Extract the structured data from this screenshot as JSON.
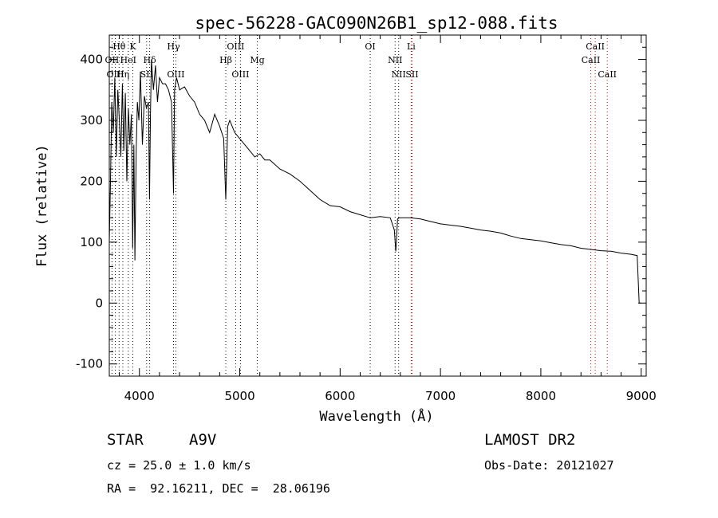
{
  "chart_data": {
    "type": "line",
    "title": "spec-56228-GAC090N26B1_sp12-088.fits",
    "xlabel": "Wavelength (Å)",
    "ylabel": "Flux (relative)",
    "xlim": [
      3700,
      9050
    ],
    "ylim": [
      -120,
      440
    ],
    "xticks": [
      4000,
      5000,
      6000,
      7000,
      8000,
      9000
    ],
    "yticks": [
      -100,
      0,
      100,
      200,
      300,
      400
    ],
    "grid": false,
    "spectrum": {
      "x": [
        3700,
        3712,
        3725,
        3740,
        3755,
        3770,
        3785,
        3800,
        3815,
        3830,
        3845,
        3860,
        3875,
        3890,
        3905,
        3920,
        3933,
        3945,
        3955,
        3968,
        3980,
        3995,
        4010,
        4030,
        4050,
        4070,
        4090,
        4101,
        4110,
        4120,
        4140,
        4160,
        4180,
        4200,
        4230,
        4260,
        4290,
        4320,
        4340,
        4350,
        4370,
        4400,
        4450,
        4500,
        4550,
        4600,
        4650,
        4700,
        4750,
        4800,
        4840,
        4861,
        4880,
        4900,
        4950,
        5000,
        5050,
        5100,
        5150,
        5200,
        5250,
        5300,
        5400,
        5500,
        5600,
        5700,
        5800,
        5900,
        6000,
        6100,
        6200,
        6300,
        6400,
        6500,
        6540,
        6555,
        6563,
        6572,
        6590,
        6650,
        6700,
        6800,
        6900,
        7000,
        7100,
        7200,
        7300,
        7400,
        7500,
        7600,
        7700,
        7800,
        7900,
        8000,
        8100,
        8200,
        8300,
        8400,
        8500,
        8600,
        8700,
        8800,
        8900,
        8960,
        8980,
        9000
      ],
      "y": [
        100,
        200,
        330,
        280,
        370,
        240,
        350,
        300,
        240,
        360,
        250,
        345,
        200,
        320,
        260,
        310,
        90,
        260,
        70,
        250,
        330,
        300,
        380,
        260,
        340,
        320,
        330,
        170,
        310,
        400,
        350,
        390,
        330,
        370,
        360,
        360,
        350,
        330,
        180,
        350,
        370,
        350,
        355,
        340,
        330,
        310,
        300,
        280,
        310,
        290,
        270,
        170,
        290,
        300,
        280,
        270,
        260,
        250,
        240,
        245,
        235,
        235,
        220,
        212,
        200,
        185,
        170,
        160,
        158,
        150,
        145,
        140,
        142,
        140,
        120,
        85,
        105,
        138,
        140,
        140,
        140,
        138,
        134,
        130,
        128,
        126,
        123,
        120,
        118,
        115,
        110,
        106,
        104,
        102,
        99,
        96,
        94,
        90,
        88,
        86,
        85,
        82,
        80,
        78,
        0,
        0
      ]
    },
    "lines": [
      {
        "name": "Hθ",
        "x": 3798,
        "row": 1,
        "color": "#000000"
      },
      {
        "name": "K",
        "x": 3934,
        "row": 1,
        "color": "#000000"
      },
      {
        "name": "Hγ",
        "x": 4340,
        "row": 1,
        "color": "#000000"
      },
      {
        "name": "OIII",
        "x": 4959,
        "row": 1,
        "color": "#000000"
      },
      {
        "name": "OI",
        "x": 6300,
        "row": 1,
        "color": "#000000"
      },
      {
        "name": "Li",
        "x": 6708,
        "row": 1,
        "color": "#cc0000"
      },
      {
        "name": "CaII",
        "x": 8542,
        "row": 1,
        "color": "#cc0000"
      },
      {
        "name": "OII",
        "x": 3727,
        "row": 2,
        "color": "#000000"
      },
      {
        "name": "HeI",
        "x": 3889,
        "row": 2,
        "color": "#000000"
      },
      {
        "name": "Hδ",
        "x": 4102,
        "row": 2,
        "color": "#000000"
      },
      {
        "name": "Hβ",
        "x": 4861,
        "row": 2,
        "color": "#000000"
      },
      {
        "name": "Mg",
        "x": 5175,
        "row": 2,
        "color": "#000000"
      },
      {
        "name": "NII",
        "x": 6548,
        "row": 2,
        "color": "#000000"
      },
      {
        "name": "CaII",
        "x": 8498,
        "row": 2,
        "color": "#cc0000"
      },
      {
        "name": "OIII",
        "x": 3760,
        "row": 3,
        "color": "#000000"
      },
      {
        "name": "Hη",
        "x": 3835,
        "row": 3,
        "color": "#000000"
      },
      {
        "name": "SII",
        "x": 4072,
        "row": 3,
        "color": "#000000"
      },
      {
        "name": "OIII",
        "x": 4363,
        "row": 3,
        "color": "#000000"
      },
      {
        "name": "OIII",
        "x": 5007,
        "row": 3,
        "color": "#000000"
      },
      {
        "name": "NII",
        "x": 6583,
        "row": 3,
        "color": "#000000"
      },
      {
        "name": "SII",
        "x": 6717,
        "row": 3,
        "color": "#cc0000"
      },
      {
        "name": "CaII",
        "x": 8662,
        "row": 3,
        "color": "#cc0000"
      }
    ]
  },
  "info": {
    "class": "STAR",
    "subclass": "A9V",
    "survey": "LAMOST DR2",
    "cz": "cz = 25.0 ± 1.0 km/s",
    "obs_date": "Obs-Date: 20121027",
    "coords": "RA =  92.16211, DEC =  28.06196"
  }
}
